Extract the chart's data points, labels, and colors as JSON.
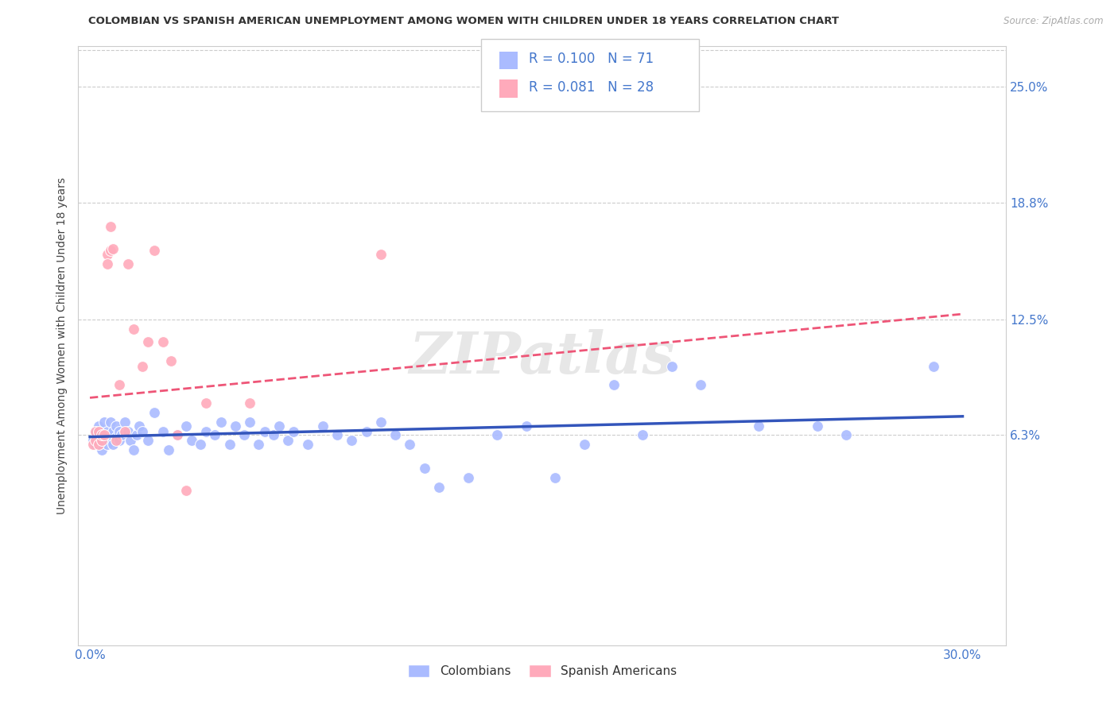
{
  "title": "COLOMBIAN VS SPANISH AMERICAN UNEMPLOYMENT AMONG WOMEN WITH CHILDREN UNDER 18 YEARS CORRELATION CHART",
  "source": "Source: ZipAtlas.com",
  "ylabel": "Unemployment Among Women with Children Under 18 years",
  "y_tick_vals": [
    0.063,
    0.125,
    0.188,
    0.25
  ],
  "y_tick_labels": [
    "6.3%",
    "12.5%",
    "18.8%",
    "25.0%"
  ],
  "x_tick_vals": [
    0.0,
    0.05,
    0.1,
    0.15,
    0.2,
    0.25,
    0.3
  ],
  "x_tick_labels": [
    "0.0%",
    "",
    "",
    "",
    "",
    "",
    "30.0%"
  ],
  "xlim": [
    -0.004,
    0.315
  ],
  "ylim": [
    -0.05,
    0.272
  ],
  "blue_dot_color": "#AABBFF",
  "pink_dot_color": "#FFAABB",
  "blue_line_color": "#3355BB",
  "pink_line_color": "#EE5577",
  "axis_text_color": "#4477CC",
  "grid_color": "#CCCCCC",
  "r_blue": 0.1,
  "n_blue": 71,
  "r_pink": 0.081,
  "n_pink": 28,
  "watermark": "ZIPatlas",
  "legend_label_blue": "Colombians",
  "legend_label_pink": "Spanish Americans",
  "title_color": "#333333",
  "source_color": "#AAAAAA",
  "blue_trend_start": 0.062,
  "blue_trend_end": 0.073,
  "pink_trend_start": 0.083,
  "pink_trend_end": 0.128,
  "blue_x": [
    0.001,
    0.002,
    0.002,
    0.003,
    0.003,
    0.004,
    0.004,
    0.005,
    0.005,
    0.006,
    0.006,
    0.007,
    0.007,
    0.008,
    0.008,
    0.009,
    0.009,
    0.01,
    0.01,
    0.011,
    0.012,
    0.013,
    0.014,
    0.015,
    0.016,
    0.017,
    0.018,
    0.02,
    0.022,
    0.025,
    0.027,
    0.03,
    0.033,
    0.035,
    0.038,
    0.04,
    0.043,
    0.045,
    0.048,
    0.05,
    0.053,
    0.055,
    0.058,
    0.06,
    0.063,
    0.065,
    0.068,
    0.07,
    0.075,
    0.08,
    0.085,
    0.09,
    0.095,
    0.1,
    0.105,
    0.11,
    0.115,
    0.12,
    0.13,
    0.14,
    0.15,
    0.16,
    0.17,
    0.18,
    0.19,
    0.2,
    0.21,
    0.23,
    0.25,
    0.26,
    0.29
  ],
  "blue_y": [
    0.06,
    0.058,
    0.065,
    0.062,
    0.068,
    0.055,
    0.063,
    0.06,
    0.07,
    0.058,
    0.065,
    0.063,
    0.07,
    0.058,
    0.065,
    0.062,
    0.068,
    0.06,
    0.065,
    0.063,
    0.07,
    0.065,
    0.06,
    0.055,
    0.063,
    0.068,
    0.065,
    0.06,
    0.075,
    0.065,
    0.055,
    0.063,
    0.068,
    0.06,
    0.058,
    0.065,
    0.063,
    0.07,
    0.058,
    0.068,
    0.063,
    0.07,
    0.058,
    0.065,
    0.063,
    0.068,
    0.06,
    0.065,
    0.058,
    0.068,
    0.063,
    0.06,
    0.065,
    0.07,
    0.063,
    0.058,
    0.045,
    0.035,
    0.04,
    0.063,
    0.068,
    0.04,
    0.058,
    0.09,
    0.063,
    0.1,
    0.09,
    0.068,
    0.068,
    0.063,
    0.1
  ],
  "pink_x": [
    0.001,
    0.002,
    0.002,
    0.003,
    0.003,
    0.004,
    0.004,
    0.005,
    0.006,
    0.006,
    0.007,
    0.007,
    0.008,
    0.009,
    0.01,
    0.012,
    0.013,
    0.015,
    0.018,
    0.02,
    0.022,
    0.025,
    0.028,
    0.03,
    0.033,
    0.04,
    0.055,
    0.1
  ],
  "pink_y": [
    0.058,
    0.06,
    0.065,
    0.058,
    0.065,
    0.06,
    0.063,
    0.063,
    0.16,
    0.155,
    0.175,
    0.162,
    0.163,
    0.06,
    0.09,
    0.065,
    0.155,
    0.12,
    0.1,
    0.113,
    0.162,
    0.113,
    0.103,
    0.063,
    0.033,
    0.08,
    0.08,
    0.16
  ]
}
